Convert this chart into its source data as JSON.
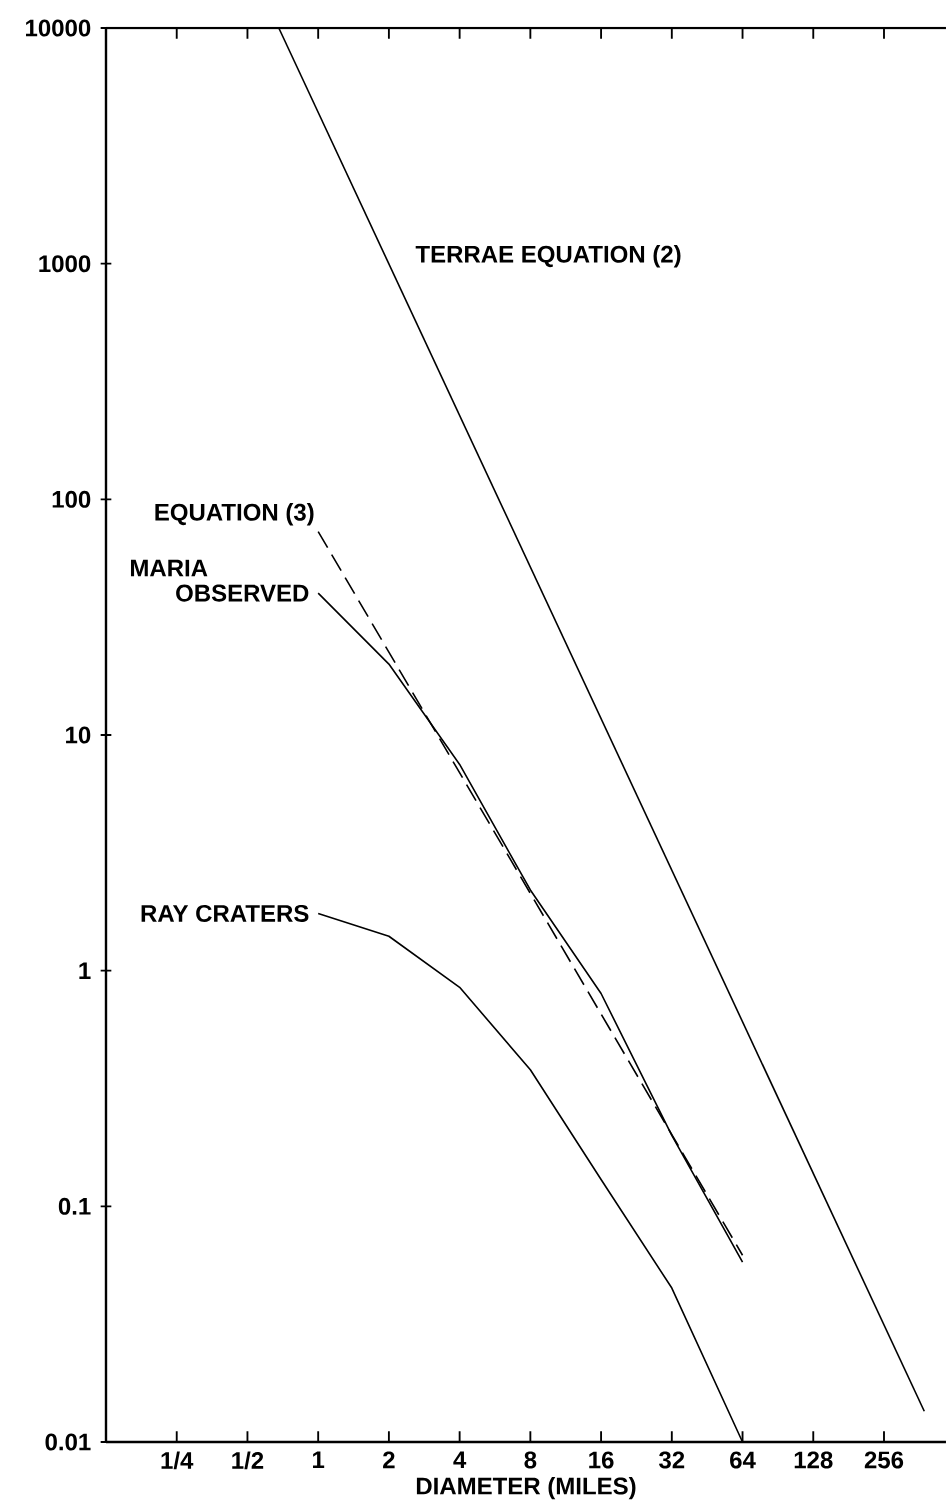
{
  "chart_data": {
    "type": "line",
    "xlabel": "DIAMETER (MILES)",
    "log": "xy",
    "grid": false,
    "marker": "none",
    "xlim": [
      0.125,
      470
    ],
    "ylim": [
      0.01,
      10000
    ],
    "xticks": [
      {
        "value": 0.25,
        "label": "1/4"
      },
      {
        "value": 0.5,
        "label": "1/2"
      },
      1,
      2,
      4,
      8,
      16,
      32,
      64,
      128,
      256
    ],
    "yticks": [
      0.01,
      0.1,
      1,
      10,
      100,
      1000,
      10000
    ],
    "series": [
      {
        "color": "#000000",
        "line_style": "solid",
        "x": [
          0.68,
          380
        ],
        "values": [
          10000,
          0.0135
        ]
      },
      {
        "color": "#000000",
        "line_style": "dashed",
        "x": [
          1,
          64
        ],
        "values": [
          73,
          0.062
        ]
      },
      {
        "color": "#000000",
        "line_style": "solid",
        "x": [
          1,
          2,
          4,
          8,
          16,
          32,
          64
        ],
        "values": [
          40,
          20,
          7.5,
          2.2,
          0.8,
          0.2,
          0.058
        ]
      },
      {
        "color": "#000000",
        "line_style": "solid",
        "x": [
          1,
          2,
          4,
          8,
          16,
          32,
          64
        ],
        "values": [
          1.75,
          1.4,
          0.85,
          0.38,
          0.13,
          0.045,
          0.01
        ]
      }
    ],
    "annotations": [
      "TERRAE   EQUATION (2)",
      "EQUATION (3)",
      "MARIA",
      "OBSERVED",
      "RAY CRATERS"
    ]
  }
}
